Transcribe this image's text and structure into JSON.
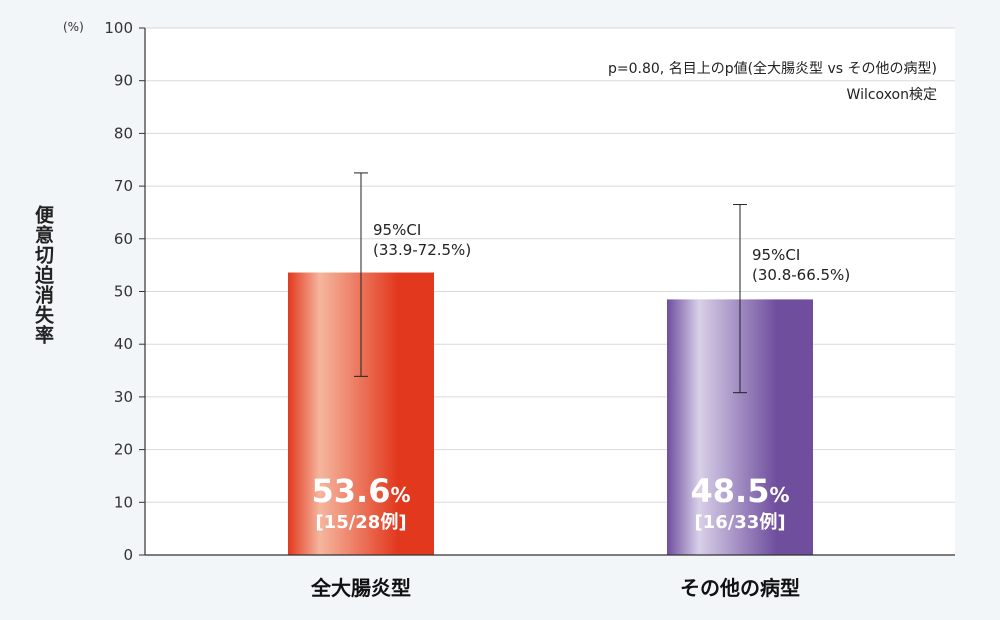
{
  "chart_data": {
    "type": "bar",
    "ylabel": "便意切迫消失率",
    "yunit": "(%)",
    "ylim": [
      0,
      100
    ],
    "yticks": [
      0,
      10,
      20,
      30,
      40,
      50,
      60,
      70,
      80,
      90,
      100
    ],
    "grid": true,
    "categories": [
      "全大腸炎型",
      "その他の病型"
    ],
    "values": [
      53.6,
      48.5
    ],
    "value_labels": [
      "53.6",
      "48.5"
    ],
    "value_unit": "%",
    "n_labels": [
      "[15/28例]",
      "[16/33例]"
    ],
    "ci_title": "95%CI",
    "ci_labels": [
      "(33.9-72.5%)",
      "(30.8-66.5%)"
    ],
    "ci_low": [
      33.9,
      30.8
    ],
    "ci_high": [
      72.5,
      66.5
    ],
    "annotations": [
      "p=0.80, 名目上のp値(全大腸炎型 vs その他の病型)",
      "Wilcoxon検定"
    ],
    "colors": {
      "bar1_light": "#f5b69e",
      "bar1_dark": "#e2391e",
      "bar2_light": "#d8d0e8",
      "bar2_dark": "#6f4e9e",
      "grid": "#d5dbe0",
      "axis": "#333333"
    }
  }
}
